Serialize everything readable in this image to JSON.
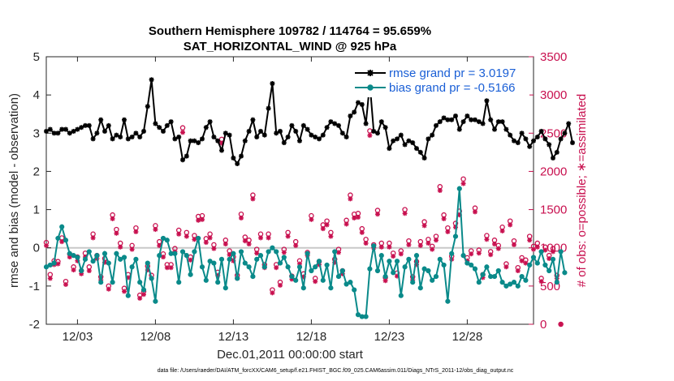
{
  "chart_data": {
    "type": "line",
    "title_line1": "Southern Hemisphere 109782 / 114764 = 95.659%",
    "title_line2": "SAT_HORIZONTAL_WIND @ 925 hPa",
    "xlabel": "Dec.01,2011 00:00:00 start",
    "ylabel_left": "rmse and bias (model - observation)",
    "ylabel_right": "# of obs: o=possible; ∗=assimilated",
    "footnote": "data file: /Users/raeder/DAI/ATM_forcXX/CAM6_setup/f.e21.FHIST_BGC.f09_025.CAM6assim.011/Diags_NTrS_2011-12/obs_diag_output.nc",
    "x_ticks": [
      "12/03",
      "12/08",
      "12/13",
      "12/18",
      "12/23",
      "12/28"
    ],
    "x_tick_days": [
      3,
      8,
      13,
      18,
      23,
      28
    ],
    "x_range": [
      1,
      32.25
    ],
    "y_left_ticks": [
      "-2",
      "-1",
      "0",
      "1",
      "2",
      "3",
      "4",
      "5"
    ],
    "y_left_range": [
      -2,
      5
    ],
    "y_right_ticks": [
      "0",
      "500",
      "1000",
      "1500",
      "2000",
      "2500",
      "3000",
      "3500"
    ],
    "y_right_range": [
      0,
      3500
    ],
    "colors": {
      "rmse": "#000000",
      "bias": "#0a8a8a",
      "obs": "#c8104f",
      "zero_line": "#c8c8c8",
      "legend_text": "#1a5fd6"
    },
    "series": [
      {
        "name": "rmse grand pr = 3.0197",
        "marker": "asterisk",
        "values": [
          3.05,
          3.1,
          3.0,
          3.0,
          3.1,
          3.1,
          3.0,
          3.05,
          3.1,
          3.15,
          3.2,
          3.2,
          2.85,
          3.0,
          3.35,
          3.05,
          3.2,
          2.85,
          2.95,
          2.9,
          3.35,
          2.85,
          2.9,
          3.0,
          2.9,
          3.05,
          3.7,
          4.4,
          3.25,
          3.15,
          3.05,
          3.2,
          3.3,
          2.85,
          2.9,
          2.3,
          2.4,
          2.8,
          2.8,
          2.75,
          2.85,
          3.15,
          3.3,
          2.9,
          2.8,
          2.55,
          3.0,
          2.95,
          2.35,
          2.2,
          2.4,
          2.8,
          3.05,
          3.35,
          2.9,
          3.05,
          2.95,
          3.65,
          4.3,
          3.0,
          3.05,
          2.75,
          2.9,
          3.2,
          3.05,
          2.8,
          3.2,
          3.1,
          2.95,
          2.9,
          2.85,
          2.95,
          3.15,
          3.3,
          3.25,
          3.2,
          3.0,
          2.9,
          3.45,
          3.55,
          3.8,
          3.75,
          3.25,
          4.3,
          3.05,
          3.0,
          3.3,
          3.15,
          2.6,
          2.8,
          2.85,
          2.95,
          2.7,
          2.8,
          2.75,
          2.6,
          2.5,
          2.35,
          2.85,
          2.95,
          3.2,
          3.3,
          3.4,
          3.35,
          3.35,
          3.45,
          3.1,
          3.3,
          3.45,
          3.35,
          3.35,
          3.3,
          3.25,
          3.85,
          3.35,
          3.1,
          3.3,
          3.3,
          3.1,
          2.95,
          2.8,
          2.75,
          3.0,
          2.85,
          2.65,
          2.8,
          2.9,
          3.05,
          2.85,
          2.7,
          2.35,
          2.5,
          2.85,
          3.0,
          3.25,
          2.75
        ]
      },
      {
        "name": "bias grand pr = -0.5166",
        "marker": "circle",
        "values": [
          -0.5,
          -0.45,
          -0.4,
          0.25,
          0.55,
          0.2,
          -0.15,
          -0.2,
          -0.25,
          -0.6,
          -0.3,
          -0.1,
          -0.35,
          -0.2,
          -0.9,
          -0.15,
          -0.4,
          -0.9,
          -0.15,
          -0.3,
          -0.25,
          -1.25,
          -0.5,
          -0.3,
          -0.9,
          -1.1,
          -0.4,
          -0.8,
          -1.4,
          -0.2,
          0.25,
          0.2,
          -0.15,
          -0.15,
          -0.9,
          -0.1,
          -0.2,
          -0.7,
          -0.1,
          0.25,
          -0.5,
          -0.85,
          -0.35,
          -0.4,
          -0.9,
          -0.3,
          -1.05,
          -0.3,
          -0.15,
          -0.8,
          -0.1,
          -0.4,
          -0.5,
          -0.75,
          -0.3,
          -0.2,
          -0.5,
          -0.1,
          0.0,
          -0.1,
          -0.4,
          -0.25,
          -0.5,
          -0.75,
          -0.85,
          -0.5,
          -1.05,
          -0.15,
          -0.6,
          -0.5,
          -0.35,
          -0.85,
          -0.45,
          -1.05,
          -0.1,
          -0.75,
          -0.6,
          -0.95,
          -0.9,
          -1.1,
          -1.75,
          -1.8,
          -1.8,
          -0.55,
          0.05,
          -0.6,
          -0.2,
          -0.75,
          -0.35,
          -0.65,
          -0.35,
          -1.25,
          -0.5,
          -0.3,
          -0.9,
          -0.2,
          -1.05,
          -0.55,
          -0.6,
          -0.85,
          -0.75,
          -0.3,
          -0.45,
          -1.4,
          -0.15,
          0.3,
          1.55,
          -0.2,
          -0.4,
          -0.45,
          -0.55,
          -0.9,
          -0.7,
          -0.5,
          -0.75,
          -0.75,
          -0.6,
          -0.9,
          -1.0,
          -0.95,
          -0.9,
          -1.0,
          -0.75,
          -0.85,
          -0.45,
          -0.25,
          -0.4,
          -0.1,
          -0.45,
          -0.6,
          -0.3,
          -0.9,
          -0.1,
          -0.65
        ]
      }
    ],
    "obs_possible": [
      1070,
      650,
      830,
      820,
      1130,
      560,
      920,
      750,
      880,
      700,
      930,
      750,
      1180,
      900,
      620,
      860,
      500,
      1430,
      1240,
      1060,
      470,
      650,
      1030,
      1260,
      380,
      430,
      760,
      640,
      1290,
      1080,
      920,
      780,
      780,
      990,
      1230,
      2570,
      1200,
      880,
      1160,
      1410,
      1420,
      1120,
      1180,
      1040,
      680,
      2420,
      1100,
      960,
      880,
      640,
      1440,
      1140,
      1100,
      1690,
      980,
      1180,
      780,
      1180,
      450,
      780,
      550,
      980,
      1200,
      630,
      1080,
      830,
      660,
      940,
      1420,
      600,
      820,
      1300,
      1350,
      1200,
      850,
      980,
      700,
      1360,
      1690,
      1440,
      1450,
      1250,
      1110,
      2530,
      1040,
      1490,
      1060,
      610,
      1060,
      930,
      670,
      960,
      1500,
      1090,
      620,
      820,
      1080,
      1340,
      1110,
      1020,
      1150,
      1800,
      1430,
      1260,
      890,
      1320,
      1480,
      1900,
      870,
      960,
      1520,
      970,
      650,
      1160,
      950,
      1100,
      1030,
      1270,
      790,
      1350,
      1090,
      740,
      870,
      840,
      1150,
      1020,
      1060,
      600,
      1010,
      900,
      990,
      640,
      0
    ],
    "obs_assimilated": [
      1030,
      600,
      780,
      790,
      1080,
      520,
      880,
      710,
      830,
      660,
      880,
      700,
      1130,
      860,
      580,
      810,
      460,
      1380,
      1190,
      1010,
      430,
      610,
      980,
      1210,
      340,
      390,
      710,
      600,
      1240,
      1030,
      880,
      740,
      740,
      950,
      1180,
      2510,
      1150,
      840,
      1110,
      1360,
      1370,
      1070,
      1130,
      990,
      640,
      2370,
      1050,
      910,
      830,
      600,
      1390,
      1090,
      1050,
      1640,
      930,
      1130,
      740,
      1130,
      410,
      740,
      510,
      940,
      1150,
      590,
      1030,
      790,
      620,
      900,
      1370,
      560,
      780,
      1250,
      1300,
      1150,
      810,
      940,
      660,
      1310,
      1640,
      1390,
      1400,
      1200,
      1060,
      2470,
      1000,
      1440,
      1010,
      570,
      1010,
      890,
      630,
      920,
      1450,
      1040,
      580,
      780,
      1030,
      1290,
      1060,
      980,
      1100,
      1750,
      1380,
      1210,
      850,
      1270,
      1430,
      1840,
      830,
      920,
      1470,
      930,
      610,
      1110,
      910,
      1050,
      990,
      1220,
      750,
      1300,
      1040,
      700,
      830,
      800,
      1100,
      980,
      1010,
      560,
      970,
      860,
      950,
      600,
      0
    ]
  }
}
